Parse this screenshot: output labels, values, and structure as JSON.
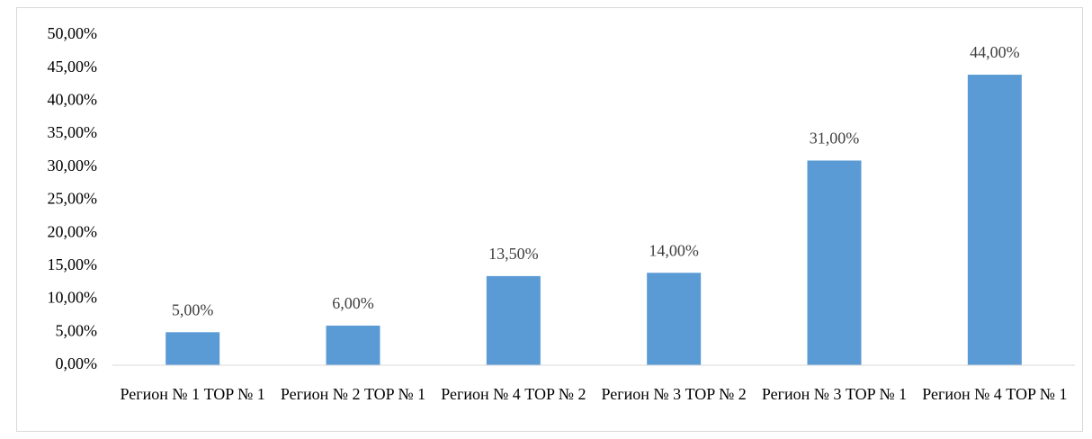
{
  "chart_data": {
    "type": "bar",
    "categories": [
      "Регион № 1 TOP № 1",
      "Регион № 2 TOP № 1",
      "Регион № 4 TOP № 2",
      "Регион № 3 TOP № 2",
      "Регион № 3 TOP № 1",
      "Регион № 4 TOP № 1"
    ],
    "values": [
      5,
      6,
      13.5,
      14,
      31,
      44
    ],
    "value_labels": [
      "5,00%",
      "6,00%",
      "13,50%",
      "14,00%",
      "31,00%",
      "44,00%"
    ],
    "color": "#5b9bd5",
    "ylim": [
      0,
      50
    ],
    "yticks": [
      {
        "value": 0,
        "label": "0,00%"
      },
      {
        "value": 5,
        "label": "5,00%"
      },
      {
        "value": 10,
        "label": "10,00%"
      },
      {
        "value": 15,
        "label": "15,00%"
      },
      {
        "value": 20,
        "label": "20,00%"
      },
      {
        "value": 25,
        "label": "25,00%"
      },
      {
        "value": 30,
        "label": "30,00%"
      },
      {
        "value": 35,
        "label": "35,00%"
      },
      {
        "value": 40,
        "label": "40,00%"
      },
      {
        "value": 45,
        "label": "45,00%"
      },
      {
        "value": 50,
        "label": "50,00%"
      }
    ],
    "grid": false
  }
}
